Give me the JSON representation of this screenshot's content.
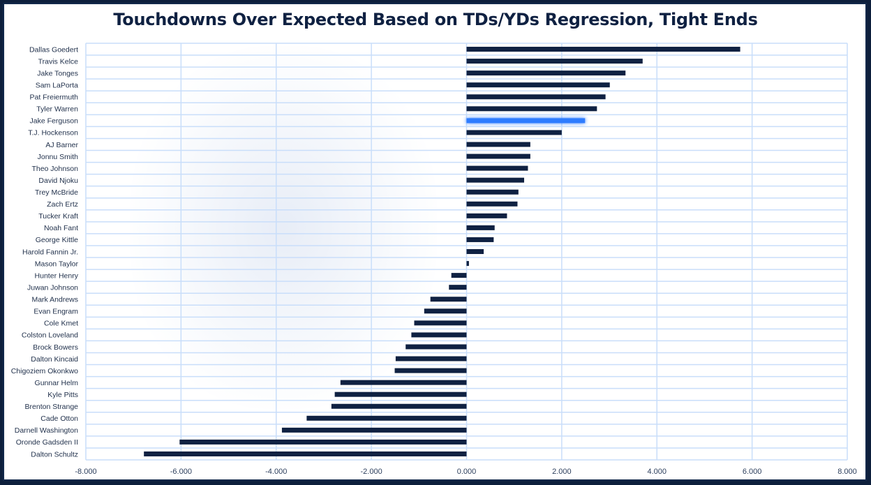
{
  "chart_data": {
    "type": "bar",
    "orientation": "horizontal",
    "title": "Touchdowns Over Expected Based on TDs/YDs Regression, Tight Ends",
    "xlabel": "",
    "ylabel": "",
    "xlim": [
      -8,
      8
    ],
    "xticks": [
      "-8.000",
      "-6.000",
      "-4.000",
      "-2.000",
      "0.000",
      "2.000",
      "4.000",
      "6.000",
      "8.000"
    ],
    "grid": true,
    "bar_color": "#0f2142",
    "highlight_color": "#2f7bff",
    "highlight": "Jake Ferguson",
    "categories": [
      "Dallas Goedert",
      "Travis Kelce",
      "Jake Tonges",
      "Sam LaPorta",
      "Pat Freiermuth",
      "Tyler Warren",
      "Jake Ferguson",
      "T.J. Hockenson",
      "AJ Barner",
      "Jonnu Smith",
      "Theo Johnson",
      "David Njoku",
      "Trey McBride",
      "Zach Ertz",
      "Tucker Kraft",
      "Noah Fant",
      "George Kittle",
      "Harold Fannin Jr.",
      "Mason Taylor",
      "Hunter Henry",
      "Juwan Johnson",
      "Mark Andrews",
      "Evan Engram",
      "Cole Kmet",
      "Colston Loveland",
      "Brock Bowers",
      "Dalton Kincaid",
      "Chigoziem Okonkwo",
      "Gunnar Helm",
      "Kyle Pitts",
      "Brenton Strange",
      "Cade Otton",
      "Darnell Washington",
      "Oronde Gadsden II",
      "Dalton Schultz"
    ],
    "values": [
      5.75,
      3.7,
      3.34,
      3.01,
      2.92,
      2.74,
      2.49,
      2.0,
      1.34,
      1.34,
      1.29,
      1.21,
      1.09,
      1.07,
      0.85,
      0.59,
      0.57,
      0.36,
      0.05,
      -0.32,
      -0.37,
      -0.76,
      -0.89,
      -1.1,
      -1.16,
      -1.28,
      -1.49,
      -1.51,
      -2.65,
      -2.77,
      -2.84,
      -3.36,
      -3.88,
      -6.03,
      -6.78
    ]
  }
}
